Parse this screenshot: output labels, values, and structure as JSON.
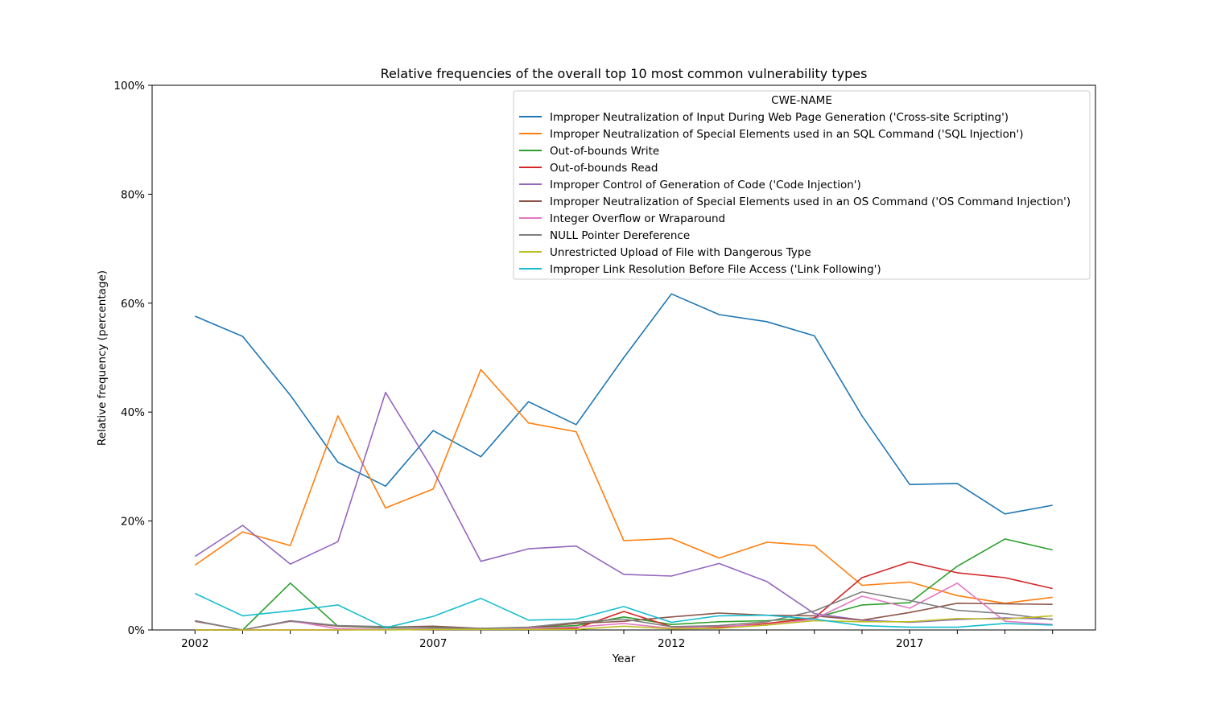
{
  "chart_data": {
    "type": "line",
    "title": "Relative frequencies of the overall top 10 most common vulnerability types",
    "xlabel": "Year",
    "ylabel": "Relative frequency (percentage)",
    "xlim": [
      2001.1,
      2020.9
    ],
    "ylim": [
      0,
      100
    ],
    "x_ticks": [
      2002,
      2007,
      2012,
      2017
    ],
    "x_tick_labels": [
      "2002",
      "2007",
      "2012",
      "2017"
    ],
    "y_ticks": [
      0,
      20,
      40,
      60,
      80,
      100
    ],
    "y_tick_labels": [
      "0%",
      "20%",
      "40%",
      "60%",
      "80%",
      "100%"
    ],
    "grid": false,
    "legend": {
      "title": "CWE-NAME",
      "placement": "top-right"
    },
    "x": [
      2002,
      2003,
      2004,
      2005,
      2006,
      2007,
      2008,
      2009,
      2010,
      2011,
      2012,
      2013,
      2014,
      2015,
      2016,
      2017,
      2018,
      2019,
      2020
    ],
    "series": [
      {
        "name": "Improper Neutralization of Input During Web Page Generation ('Cross-site Scripting')",
        "color": "#1f77b4",
        "values": [
          57.6,
          53.9,
          43.1,
          30.8,
          26.4,
          36.6,
          31.8,
          41.9,
          37.7,
          50.0,
          61.7,
          57.9,
          56.6,
          54.0,
          39.3,
          26.7,
          26.9,
          21.3,
          22.9
        ]
      },
      {
        "name": "Improper Neutralization of Special Elements used in an SQL Command ('SQL Injection')",
        "color": "#ff7f0e",
        "values": [
          11.9,
          18.0,
          15.5,
          39.3,
          22.4,
          25.9,
          47.8,
          38.0,
          36.4,
          16.4,
          16.8,
          13.2,
          16.1,
          15.5,
          8.2,
          8.8,
          6.3,
          4.9,
          6.0
        ]
      },
      {
        "name": "Out-of-bounds Write",
        "color": "#2ca02c",
        "values": [
          0.0,
          0.0,
          8.6,
          0.7,
          0.4,
          0.5,
          0.3,
          0.4,
          0.8,
          2.4,
          1.0,
          1.5,
          1.7,
          2.2,
          4.6,
          5.0,
          11.7,
          16.7,
          14.7
        ]
      },
      {
        "name": "Out-of-bounds Read",
        "color": "#d62728",
        "values": [
          0.0,
          0.0,
          0.0,
          0.0,
          0.1,
          0.1,
          0.1,
          0.2,
          0.3,
          3.4,
          0.6,
          0.5,
          1.2,
          2.2,
          9.6,
          12.5,
          10.5,
          9.6,
          7.6
        ]
      },
      {
        "name": "Improper Control of Generation of Code ('Code Injection')",
        "color": "#9467bd",
        "values": [
          13.5,
          19.2,
          12.1,
          16.2,
          43.6,
          29.3,
          12.6,
          14.9,
          15.4,
          10.2,
          9.9,
          12.2,
          8.9,
          3.0,
          1.8,
          1.4,
          1.9,
          2.2,
          2.0
        ]
      },
      {
        "name": "Improper Neutralization of Special Elements used in an OS Command ('OS Command Injection')",
        "color": "#8c564b",
        "values": [
          1.6,
          0.0,
          1.6,
          0.7,
          0.5,
          0.7,
          0.3,
          0.4,
          1.2,
          1.6,
          2.4,
          3.1,
          2.7,
          2.6,
          1.8,
          3.2,
          4.9,
          4.8,
          4.7
        ]
      },
      {
        "name": "Integer Overflow or Wraparound",
        "color": "#e377c2",
        "values": [
          1.7,
          0.0,
          1.7,
          0.2,
          0.1,
          0.2,
          0.3,
          0.3,
          0.5,
          1.2,
          0.3,
          0.7,
          0.9,
          2.0,
          6.2,
          4.0,
          8.6,
          1.6,
          1.0
        ]
      },
      {
        "name": "NULL Pointer Dereference",
        "color": "#7f7f7f",
        "values": [
          1.7,
          0.0,
          1.7,
          0.8,
          0.6,
          0.4,
          0.3,
          0.5,
          1.4,
          2.0,
          0.6,
          0.8,
          1.5,
          3.5,
          7.0,
          5.4,
          3.6,
          3.0,
          1.9
        ]
      },
      {
        "name": "Unrestricted Upload of File with Dangerous Type",
        "color": "#bcbd22",
        "values": [
          0.0,
          0.0,
          0.0,
          0.0,
          0.0,
          0.1,
          0.1,
          0.1,
          0.1,
          0.7,
          0.2,
          0.3,
          0.9,
          1.7,
          1.5,
          1.5,
          2.1,
          2.0,
          2.6
        ]
      },
      {
        "name": "Improper Link Resolution Before File Access ('Link Following')",
        "color": "#17becf",
        "values": [
          6.7,
          2.6,
          3.5,
          4.6,
          0.4,
          2.5,
          5.8,
          1.8,
          2.0,
          4.3,
          1.4,
          2.6,
          2.7,
          2.0,
          0.8,
          0.5,
          0.5,
          1.2,
          0.9
        ]
      }
    ]
  }
}
